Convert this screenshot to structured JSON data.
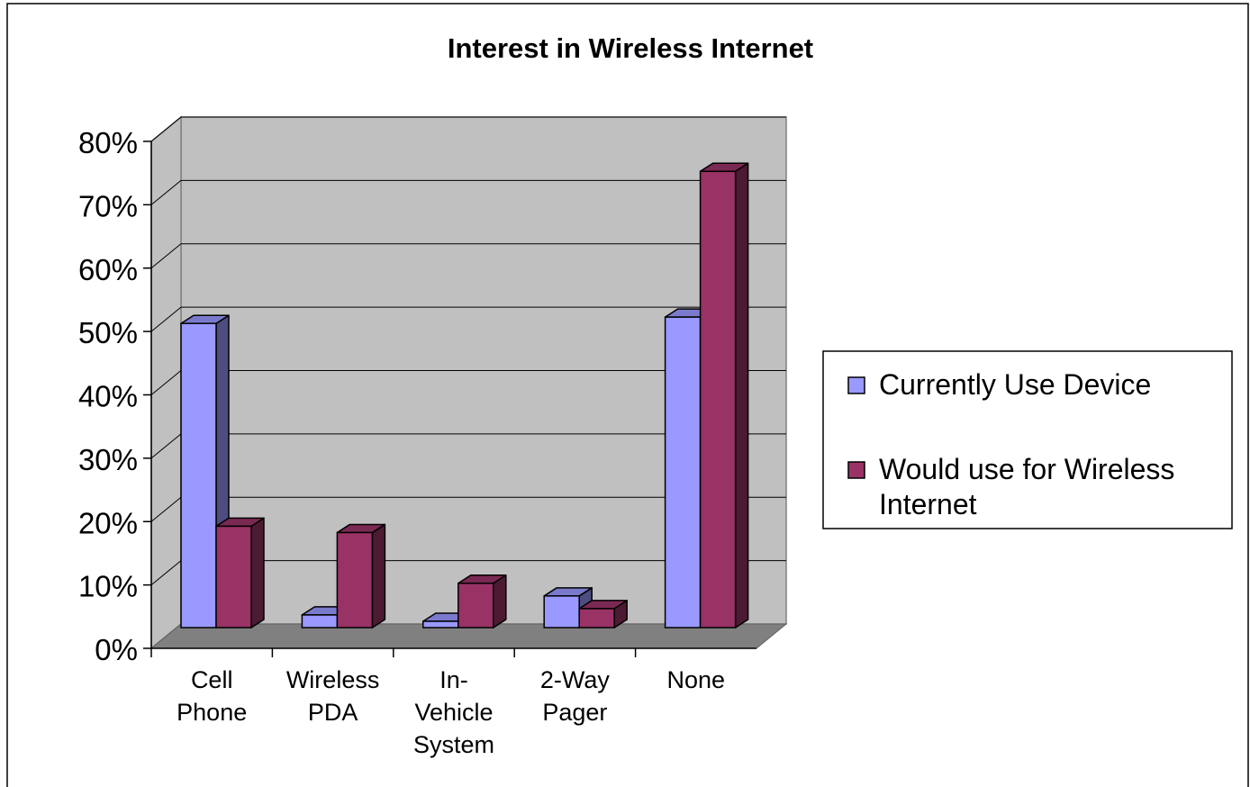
{
  "chart_data": {
    "type": "bar",
    "style": "3d-clustered-column",
    "title": "Interest in Wireless Internet",
    "xlabel": "",
    "ylabel": "",
    "ylim": [
      0,
      0.8
    ],
    "yticks": [
      0,
      0.1,
      0.2,
      0.3,
      0.4,
      0.5,
      0.6,
      0.7,
      0.8
    ],
    "ytick_labels": [
      "0%",
      "10%",
      "20%",
      "30%",
      "40%",
      "50%",
      "60%",
      "70%",
      "80%"
    ],
    "categories": [
      [
        "Cell",
        "Phone"
      ],
      [
        "Wireless",
        "PDA"
      ],
      [
        "In-",
        "Vehicle",
        "System"
      ],
      [
        "2-Way",
        "Pager"
      ],
      [
        "None"
      ]
    ],
    "series": [
      {
        "name": "Currently Use Device",
        "color": "#9999FF",
        "values": [
          0.48,
          0.02,
          0.01,
          0.05,
          0.49
        ]
      },
      {
        "name": "Would use for Wireless Internet",
        "color": "#993366",
        "values": [
          0.16,
          0.15,
          0.07,
          0.03,
          0.72
        ]
      }
    ],
    "legend": {
      "position": "right",
      "entries": [
        [
          "Currently Use Device"
        ],
        [
          "Would use for Wireless",
          "Internet"
        ]
      ]
    },
    "grid": true,
    "wall_color": "#C0C0C0",
    "floor_color": "#808080"
  }
}
